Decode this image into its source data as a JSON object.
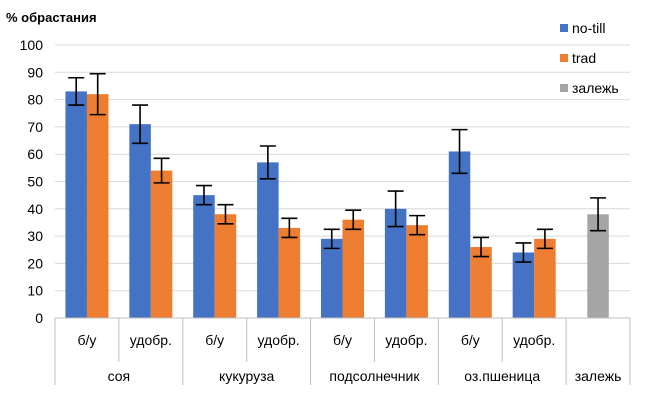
{
  "chart_data": {
    "type": "bar",
    "ylabel": "% обрастания",
    "ylim": [
      0,
      100
    ],
    "yticks": [
      0,
      10,
      20,
      30,
      40,
      50,
      60,
      70,
      80,
      90,
      100
    ],
    "grid": true,
    "legend_position": "right",
    "groups": [
      {
        "label": "соя",
        "subcategories": [
          "б/у",
          "удобр."
        ]
      },
      {
        "label": "кукуруза",
        "subcategories": [
          "б/у",
          "удобр."
        ]
      },
      {
        "label": "подсолнечник",
        "subcategories": [
          "б/у",
          "удобр."
        ]
      },
      {
        "label": "оз.пшеница",
        "subcategories": [
          "б/у",
          "удобр."
        ]
      },
      {
        "label": "залежь",
        "subcategories": [
          ""
        ]
      }
    ],
    "series": [
      {
        "name": "no-till",
        "color": "#4472C4",
        "values": [
          83,
          71,
          45,
          57,
          29,
          40,
          61,
          24,
          null
        ],
        "errors": [
          5,
          7,
          3.5,
          6,
          3.5,
          6.5,
          8,
          3.5,
          null
        ]
      },
      {
        "name": "trad",
        "color": "#ED7D31",
        "values": [
          82,
          54,
          38,
          33,
          36,
          34,
          26,
          29,
          null
        ],
        "errors": [
          7.5,
          4.5,
          3.5,
          3.5,
          3.5,
          3.5,
          3.5,
          3.5,
          null
        ]
      },
      {
        "name": "залежь",
        "color": "#A5A5A5",
        "values": [
          null,
          null,
          null,
          null,
          null,
          null,
          null,
          null,
          38
        ],
        "errors": [
          null,
          null,
          null,
          null,
          null,
          null,
          null,
          null,
          6
        ]
      }
    ]
  }
}
